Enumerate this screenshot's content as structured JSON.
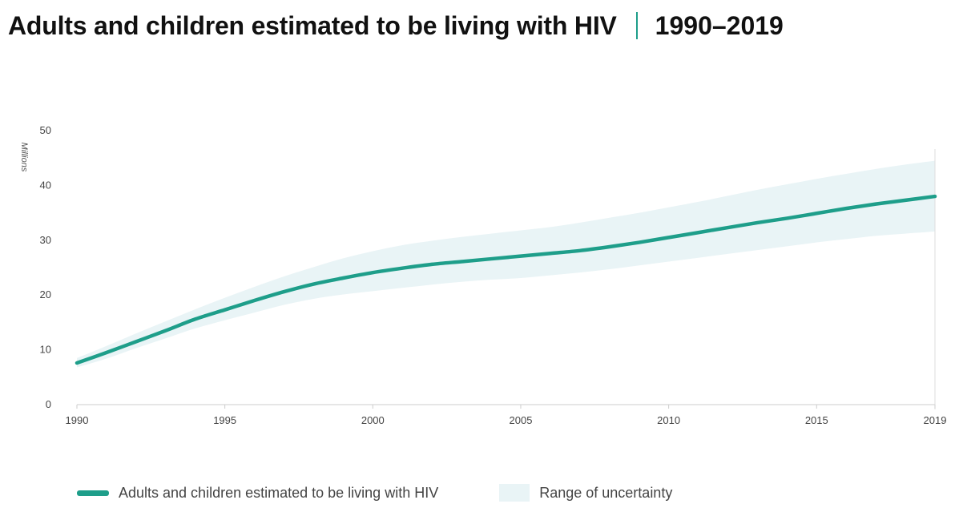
{
  "header": {
    "title": "Adults and children estimated to be living with HIV",
    "subtitle": "1990–2019"
  },
  "colors": {
    "accent": "#1e9e8a",
    "band": "#e9f4f6",
    "axis": "#cccccc"
  },
  "chart_data": {
    "type": "area",
    "title": "Adults and children estimated to be living with HIV",
    "subtitle": "1990–2019",
    "xlabel": "",
    "ylabel": "Millions",
    "xlim": [
      1990,
      2019
    ],
    "ylim": [
      0,
      50
    ],
    "grid": false,
    "legend_position": "bottom-left",
    "x_ticks": [
      "1990",
      "1995",
      "2000",
      "2005",
      "2010",
      "2015",
      "2019"
    ],
    "x_tick_values": [
      1990,
      1995,
      2000,
      2005,
      2010,
      2015,
      2019
    ],
    "y_ticks": [
      "0",
      "10",
      "20",
      "30",
      "40",
      "50"
    ],
    "y_tick_values": [
      0,
      10,
      20,
      30,
      40,
      50
    ],
    "x": [
      1990,
      1991,
      1992,
      1993,
      1994,
      1995,
      1996,
      1997,
      1998,
      1999,
      2000,
      2001,
      2002,
      2003,
      2004,
      2005,
      2006,
      2007,
      2008,
      2009,
      2010,
      2011,
      2012,
      2013,
      2014,
      2015,
      2016,
      2017,
      2018,
      2019
    ],
    "series": [
      {
        "name": "Adults and children estimated to be living with HIV",
        "kind": "line",
        "values": [
          7.6,
          9.5,
          11.5,
          13.5,
          15.6,
          17.3,
          19.0,
          20.6,
          22.0,
          23.1,
          24.1,
          24.9,
          25.6,
          26.1,
          26.6,
          27.1,
          27.6,
          28.1,
          28.8,
          29.6,
          30.5,
          31.4,
          32.3,
          33.2,
          34.0,
          34.9,
          35.8,
          36.6,
          37.3,
          38.0
        ]
      },
      {
        "name": "Range of uncertainty",
        "kind": "band",
        "lower": [
          6.8,
          8.4,
          10.3,
          12.1,
          13.9,
          15.4,
          16.8,
          18.2,
          19.3,
          20.1,
          20.7,
          21.3,
          21.9,
          22.4,
          22.8,
          23.1,
          23.6,
          24.1,
          24.7,
          25.4,
          26.1,
          26.8,
          27.5,
          28.2,
          28.9,
          29.6,
          30.2,
          30.8,
          31.2,
          31.6
        ],
        "upper": [
          8.5,
          10.7,
          13.0,
          15.2,
          17.4,
          19.5,
          21.5,
          23.4,
          25.1,
          26.7,
          28.0,
          29.1,
          29.9,
          30.6,
          31.2,
          31.8,
          32.4,
          33.2,
          34.1,
          35.0,
          36.0,
          37.0,
          38.1,
          39.2,
          40.2,
          41.2,
          42.1,
          43.0,
          43.8,
          44.5
        ]
      }
    ]
  }
}
